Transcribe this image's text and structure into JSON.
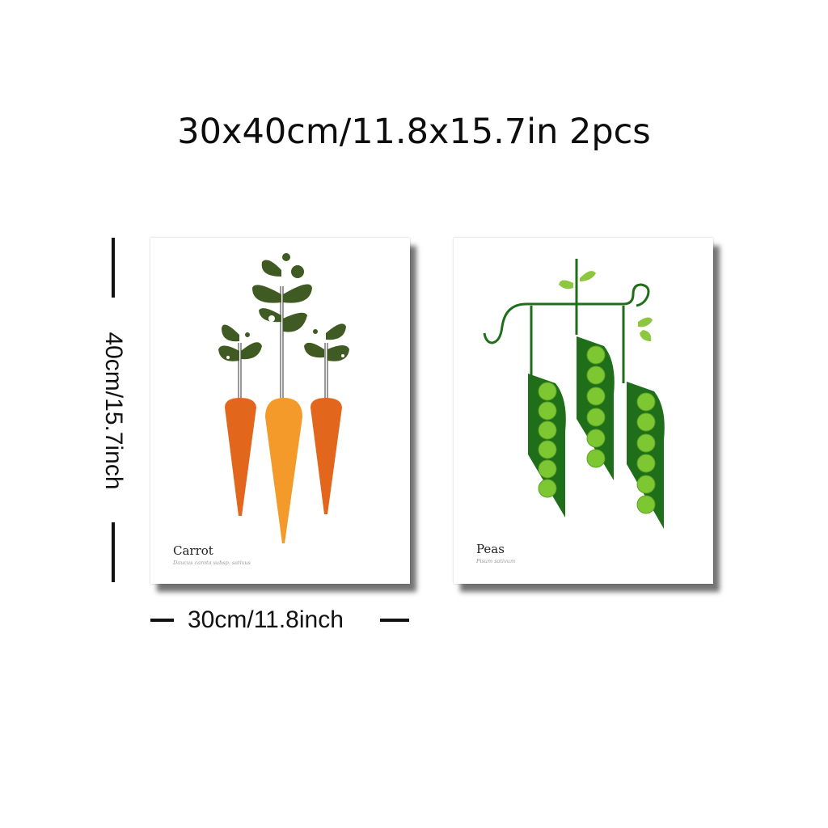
{
  "headline": "30x40cm/11.8x15.7in 2pcs",
  "dimensions": {
    "height_label": "40cm/15.7inch",
    "width_label": "30cm/11.8inch"
  },
  "posters": [
    {
      "title": "Carrot",
      "subtitle": "Daucus carota subsp. sativus",
      "illustration": "carrot-illustration",
      "colors": {
        "carrot": "#e2661b",
        "carrot_light": "#f39a2a",
        "leaf": "#3f5a22"
      }
    },
    {
      "title": "Peas",
      "subtitle": "Pisum sativum",
      "illustration": "pea-pods-illustration",
      "colors": {
        "pod": "#1f6e1a",
        "pea": "#7dc832",
        "leaf": "#8dc63f"
      }
    }
  ]
}
